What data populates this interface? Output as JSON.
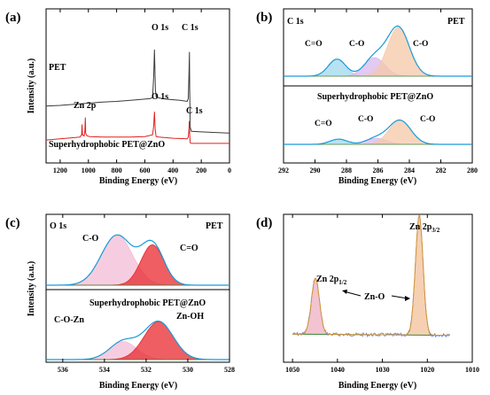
{
  "chart_data": [
    {
      "panel": "(a)",
      "type": "line",
      "xlabel": "Binding Energy (eV)",
      "ylabel": "Intensity (a.u.)",
      "xlim": [
        1300,
        0
      ],
      "xticks": [
        1200,
        1000,
        800,
        600,
        400,
        200,
        0
      ],
      "x_reversed": true,
      "series": [
        {
          "name": "PET",
          "color": "#3a3a3a",
          "offset": 0.6,
          "x": [
            1300,
            1200,
            1100,
            1000,
            900,
            800,
            700,
            600,
            560,
            545,
            537,
            532,
            525,
            520,
            500,
            450,
            400,
            350,
            300,
            292,
            287,
            284,
            282,
            278,
            270,
            200,
            100,
            0
          ],
          "y": [
            0.02,
            0.03,
            0.05,
            0.07,
            0.09,
            0.1,
            0.12,
            0.14,
            0.15,
            0.17,
            0.55,
            1.0,
            0.3,
            0.18,
            0.16,
            0.14,
            0.13,
            0.12,
            0.1,
            0.15,
            0.6,
            0.96,
            0.3,
            -0.35,
            -0.42,
            -0.43,
            -0.44,
            -0.45
          ]
        },
        {
          "name": "Superhydrophobic PET@ZnO",
          "color": "#e02020",
          "offset": 0.0,
          "x": [
            1300,
            1200,
            1100,
            1060,
            1048,
            1045,
            1042,
            1030,
            1025,
            1022,
            1019,
            1010,
            990,
            900,
            800,
            700,
            600,
            545,
            537,
            532,
            526,
            520,
            500,
            400,
            300,
            292,
            287,
            285,
            282,
            278,
            270,
            200,
            100,
            0
          ],
          "y": [
            0.03,
            0.05,
            0.07,
            0.08,
            0.12,
            0.3,
            0.12,
            0.1,
            0.2,
            0.42,
            0.15,
            0.1,
            0.09,
            0.08,
            0.08,
            0.08,
            0.09,
            0.12,
            0.28,
            0.52,
            0.2,
            0.09,
            0.08,
            0.06,
            0.05,
            0.08,
            0.22,
            0.36,
            0.12,
            -0.02,
            -0.03,
            -0.03,
            -0.03,
            -0.03
          ]
        }
      ],
      "annotations": [
        {
          "text": "PET"
        },
        {
          "text": "O 1s"
        },
        {
          "text": "C 1s"
        },
        {
          "text": "Zn 2p"
        },
        {
          "text": "O 1s"
        },
        {
          "text": "C 1s"
        },
        {
          "text": "Superhydrophobic PET@ZnO"
        }
      ]
    },
    {
      "panel": "(b)",
      "type": "area",
      "title": "C 1s",
      "xlabel": "Binding Energy (eV)",
      "xlim": [
        292,
        280
      ],
      "xticks": [
        292,
        290,
        288,
        286,
        284,
        282,
        280
      ],
      "x_reversed": true,
      "subplots": [
        {
          "label": "PET",
          "components": [
            {
              "name": "C=O",
              "center": 288.6,
              "height": 0.35,
              "width": 0.55,
              "color": "#9fd8ee"
            },
            {
              "name": "C-O",
              "center": 286.2,
              "height": 0.38,
              "width": 0.65,
              "color": "#d8b8ec"
            },
            {
              "name": "C-O",
              "center": 284.7,
              "height": 1.0,
              "width": 0.7,
              "color": "#f6c8a8"
            }
          ],
          "annotations": [
            "C=O",
            "C-O",
            "C-O"
          ]
        },
        {
          "label": "Superhydrophobic PET@ZnO",
          "components": [
            {
              "name": "C=O",
              "center": 288.5,
              "height": 0.13,
              "width": 0.55,
              "color": "#9fd8ee"
            },
            {
              "name": "C-O",
              "center": 286.1,
              "height": 0.15,
              "width": 0.65,
              "color": "#d8b8ec"
            },
            {
              "name": "C-O",
              "center": 284.6,
              "height": 0.6,
              "width": 0.7,
              "color": "#f6c8a8"
            }
          ],
          "annotations": [
            "C=O",
            "C-O",
            "C-O"
          ]
        }
      ]
    },
    {
      "panel": "(c)",
      "type": "area",
      "title": "O 1s",
      "xlabel": "Binding Energy (eV)",
      "ylabel": "Intensity (a.u.)",
      "xlim": [
        536.8,
        528
      ],
      "xticks": [
        536,
        534,
        532,
        530,
        528
      ],
      "x_reversed": true,
      "subplots": [
        {
          "label": "PET",
          "components": [
            {
              "name": "C-O",
              "center": 533.4,
              "height": 0.94,
              "width": 0.75,
              "color": "#f3bcd6"
            },
            {
              "name": "C=O",
              "center": 531.7,
              "height": 0.76,
              "width": 0.55,
              "color": "#e8282f"
            }
          ],
          "annotations": [
            "C-O",
            "C=O"
          ]
        },
        {
          "label": "Superhydrophobic PET@ZnO",
          "components": [
            {
              "name": "C-O-Zn",
              "center": 533.1,
              "height": 0.27,
              "width": 0.65,
              "color": "#f3bcd6"
            },
            {
              "name": "Zn-OH",
              "center": 531.4,
              "height": 0.57,
              "width": 0.7,
              "color": "#e8282f"
            }
          ],
          "annotations": [
            "C-O-Zn",
            "Zn-OH"
          ]
        }
      ]
    },
    {
      "panel": "(d)",
      "type": "area",
      "xlabel": "Binding Energy (eV)",
      "xlim": [
        1052,
        1010
      ],
      "xticks": [
        1050,
        1040,
        1030,
        1020,
        1010
      ],
      "x_reversed": true,
      "components": [
        {
          "name": "Zn 2p1/2",
          "center": 1044.9,
          "height": 0.47,
          "width": 0.9,
          "color": "#f0b8c8"
        },
        {
          "name": "Zn 2p3/2",
          "center": 1021.8,
          "height": 1.0,
          "width": 0.85,
          "color": "#f3c8a6"
        }
      ],
      "baseline": [
        {
          "x": 1050,
          "y": 0.05
        },
        {
          "x": 1015,
          "y": 0.04
        }
      ],
      "annotations": [
        "Zn 2p1/2",
        "Zn 2p3/2",
        "Zn-O"
      ]
    }
  ],
  "labels": {
    "a": {
      "panel": "(a)",
      "xlabel": "Binding Energy (eV)",
      "ylabel": "Intensity (a.u.)",
      "pet": "PET",
      "o1s": "O 1s",
      "c1s": "C 1s",
      "zn2p": "Zn 2p",
      "o1s2": "O 1s",
      "c1s2": "C 1s",
      "shpet": "Superhydrophobic PET@ZnO"
    },
    "b": {
      "panel": "(b)",
      "title": "C 1s",
      "pet": "PET",
      "shpet": "Superhydrophobic PET@ZnO",
      "xlabel": "Binding Energy (eV)",
      "t1_co": "C=O",
      "t1_c1": "C-O",
      "t1_c2": "C-O",
      "t2_co": "C=O",
      "t2_c1": "C-O",
      "t2_c2": "C-O"
    },
    "c": {
      "panel": "(c)",
      "title": "O 1s",
      "pet": "PET",
      "shpet": "Superhydrophobic PET@ZnO",
      "xlabel": "Binding Energy (eV)",
      "ylabel": "Intensity (a.u.)",
      "co": "C-O",
      "cdo": "C=O",
      "cozn": "C-O-Zn",
      "znoh": "Zn-OH"
    },
    "d": {
      "panel": "(d)",
      "xlabel": "Binding Energy (eV)",
      "zn12_base": "Zn 2p",
      "zn12_sub": "1/2",
      "zn32_base": "Zn 2p",
      "zn32_sub": "3/2",
      "zno": "Zn-O"
    }
  },
  "colors": {
    "envelope": "#1a9ad6",
    "baseline": "#3e8e3e",
    "raw_d": "#6f7fd0"
  }
}
